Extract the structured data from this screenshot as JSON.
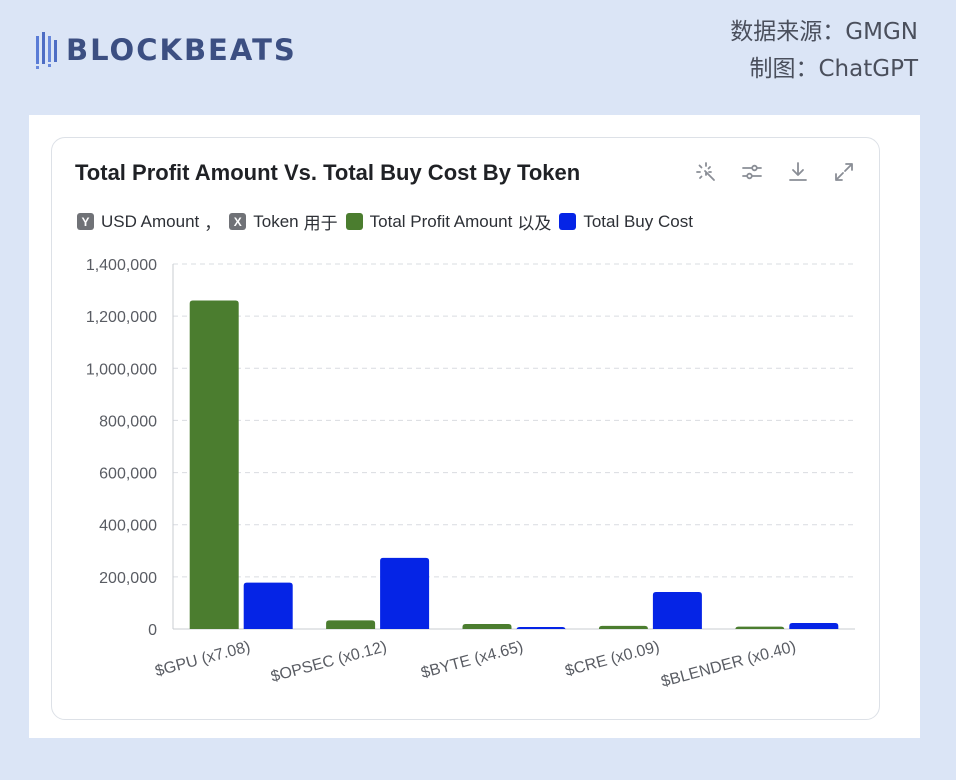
{
  "brand": {
    "logo_text": "BLOCKBEATS",
    "logo_icon": "blockbeats-bars-logo"
  },
  "source": {
    "line1": "数据来源：GMGN",
    "line2": "制图：ChatGPT"
  },
  "toolbar": [
    "magic-wand-icon",
    "sliders-icon",
    "download-icon",
    "expand-icon"
  ],
  "legend": {
    "y_letter": "Y",
    "y_text": "USD Amount",
    "sep": "，",
    "x_letter": "X",
    "x_text": "Token",
    "for_word": "用于",
    "and_word": "以及"
  },
  "colors": {
    "profit": "#4b7d2f",
    "cost": "#0524e6",
    "grid": "#d9dce1",
    "axis": "#c9ccd2"
  },
  "chart_data": {
    "type": "bar",
    "title": "Total Profit Amount Vs. Total Buy Cost By Token",
    "xlabel": "Token",
    "ylabel": "USD Amount",
    "categories": [
      "$GPU (x7.08)",
      "$OPSEC (x0.12)",
      "$BYTE (x4.65)",
      "$CRE (x0.09)",
      "$BLENDER (x0.40)"
    ],
    "series": [
      {
        "name": "Total Profit Amount",
        "values": [
          1260000,
          33000,
          19000,
          12000,
          9000
        ]
      },
      {
        "name": "Total Buy Cost",
        "values": [
          178000,
          273000,
          4000,
          142000,
          23000
        ]
      }
    ],
    "ylim": [
      0,
      1400000
    ],
    "yticks": [
      0,
      200000,
      400000,
      600000,
      800000,
      1000000,
      1200000,
      1400000
    ],
    "ytick_labels": [
      "0",
      "200,000",
      "400,000",
      "600,000",
      "800,000",
      "1,000,000",
      "1,200,000",
      "1,400,000"
    ],
    "grid": true,
    "legend_position": "top-left"
  }
}
